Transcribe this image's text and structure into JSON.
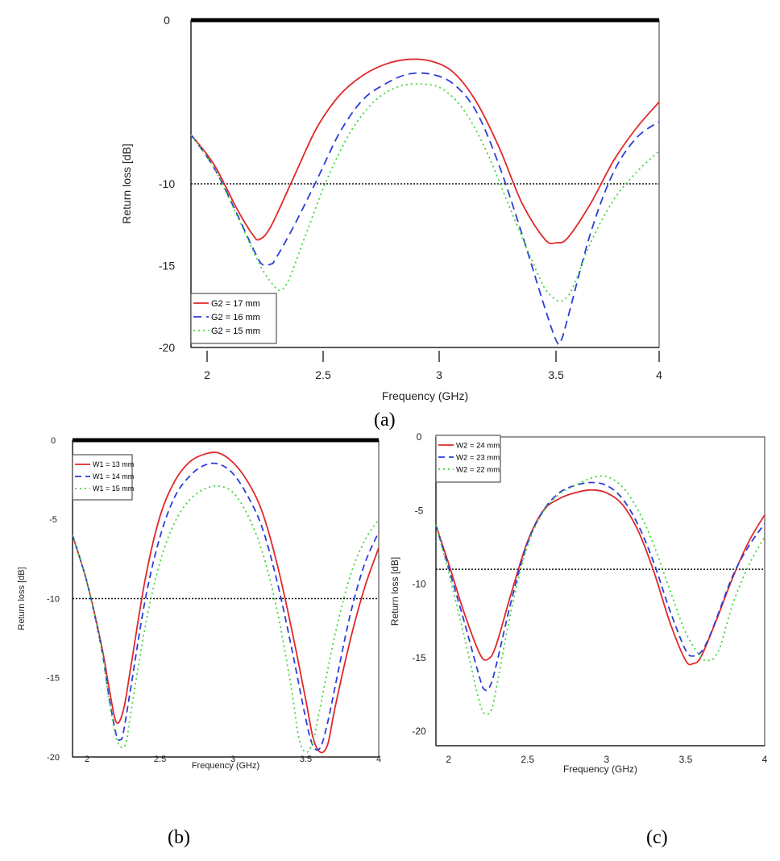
{
  "chart_data": [
    {
      "id": "a",
      "panel_label": "(a)",
      "type": "line",
      "xlabel": "Frequency (GHz)",
      "ylabel": "Return loss [dB]",
      "xlim": [
        1.95,
        4.0
      ],
      "ylim": [
        -20,
        0
      ],
      "xticks": [
        "2",
        "2.5",
        "3",
        "3.5",
        "4"
      ],
      "yticks": [
        "0",
        "-10",
        "-15",
        "-20"
      ],
      "threshold": -10,
      "legend_position": "bottom-left",
      "series": [
        {
          "name": "G2 = 17 mm",
          "color": "#e0282a",
          "dash": "solid",
          "x": [
            1.95,
            2.05,
            2.15,
            2.22,
            2.25,
            2.3,
            2.4,
            2.5,
            2.6,
            2.7,
            2.8,
            2.9,
            3.0,
            3.1,
            3.2,
            3.3,
            3.4,
            3.5,
            3.55,
            3.6,
            3.7,
            3.8,
            3.9,
            4.0
          ],
          "y": [
            -7.0,
            -8.8,
            -11.5,
            -13.1,
            -13.4,
            -12.6,
            -9.6,
            -6.6,
            -4.6,
            -3.4,
            -2.7,
            -2.4,
            -2.5,
            -3.2,
            -5.0,
            -7.8,
            -11.2,
            -13.4,
            -13.6,
            -13.3,
            -11.2,
            -8.6,
            -6.6,
            -5.0
          ]
        },
        {
          "name": "G2 = 16 mm",
          "color": "#2c3fd6",
          "dash": "10,6",
          "x": [
            1.95,
            2.05,
            2.15,
            2.22,
            2.26,
            2.3,
            2.32,
            2.4,
            2.5,
            2.6,
            2.7,
            2.8,
            2.9,
            3.0,
            3.1,
            3.2,
            3.3,
            3.4,
            3.5,
            3.55,
            3.57,
            3.6,
            3.7,
            3.8,
            3.9,
            4.0
          ],
          "y": [
            -7.0,
            -9.0,
            -11.8,
            -13.9,
            -14.9,
            -14.9,
            -14.6,
            -12.6,
            -9.8,
            -6.9,
            -4.9,
            -3.9,
            -3.3,
            -3.3,
            -3.9,
            -5.6,
            -8.9,
            -13.1,
            -17.6,
            -19.6,
            -19.6,
            -18.2,
            -13.0,
            -9.3,
            -7.2,
            -6.2
          ]
        },
        {
          "name": "G2 = 15 mm",
          "color": "#3fd63a",
          "dash": "2,4",
          "x": [
            1.95,
            2.05,
            2.15,
            2.25,
            2.3,
            2.34,
            2.38,
            2.45,
            2.55,
            2.65,
            2.75,
            2.85,
            2.95,
            3.05,
            3.15,
            3.25,
            3.35,
            3.45,
            3.5,
            3.55,
            3.58,
            3.62,
            3.7,
            3.8,
            3.9,
            4.0
          ],
          "y": [
            -7.0,
            -9.0,
            -11.9,
            -14.9,
            -16.0,
            -16.5,
            -15.8,
            -13.2,
            -9.6,
            -6.8,
            -5.0,
            -4.1,
            -3.9,
            -4.2,
            -5.6,
            -8.2,
            -11.6,
            -14.9,
            -16.4,
            -17.1,
            -17.1,
            -16.4,
            -13.6,
            -11.0,
            -9.3,
            -8.0
          ]
        }
      ]
    },
    {
      "id": "b",
      "panel_label": "(b)",
      "type": "line",
      "xlabel": "Frequency (GHz)",
      "ylabel": "Return loss [dB]",
      "xlim": [
        1.9,
        4.0
      ],
      "ylim": [
        -20,
        0
      ],
      "xticks": [
        "2",
        "2.5",
        "3",
        "3.5",
        "4"
      ],
      "yticks": [
        "0",
        "-5",
        "-10",
        "-15",
        "-20"
      ],
      "threshold": -10,
      "legend_position": "top-left",
      "series": [
        {
          "name": "W1 = 13 mm",
          "color": "#e0282a",
          "dash": "solid",
          "x": [
            1.9,
            2.0,
            2.1,
            2.15,
            2.2,
            2.25,
            2.3,
            2.4,
            2.5,
            2.6,
            2.7,
            2.8,
            2.9,
            3.0,
            3.1,
            3.2,
            3.3,
            3.4,
            3.5,
            3.55,
            3.6,
            3.65,
            3.7,
            3.8,
            3.9,
            4.0
          ],
          "y": [
            -6.0,
            -9.0,
            -13.0,
            -15.6,
            -17.8,
            -17.0,
            -14.3,
            -8.7,
            -4.8,
            -2.6,
            -1.4,
            -0.9,
            -0.8,
            -1.4,
            -2.6,
            -4.5,
            -7.7,
            -11.8,
            -16.4,
            -18.8,
            -19.7,
            -19.2,
            -16.9,
            -12.8,
            -9.4,
            -6.8
          ]
        },
        {
          "name": "W1 = 14 mm",
          "color": "#2c3fd6",
          "dash": "8,5",
          "x": [
            1.9,
            2.0,
            2.1,
            2.15,
            2.2,
            2.23,
            2.25,
            2.3,
            2.4,
            2.5,
            2.6,
            2.7,
            2.8,
            2.9,
            3.0,
            3.1,
            3.2,
            3.3,
            3.4,
            3.5,
            3.55,
            3.6,
            3.65,
            3.7,
            3.8,
            3.9,
            4.0
          ],
          "y": [
            -6.0,
            -9.0,
            -13.2,
            -16.2,
            -18.6,
            -18.9,
            -18.4,
            -15.6,
            -10.0,
            -6.1,
            -3.6,
            -2.3,
            -1.6,
            -1.5,
            -2.1,
            -3.5,
            -5.5,
            -8.8,
            -13.0,
            -17.6,
            -19.3,
            -19.4,
            -17.8,
            -15.6,
            -11.2,
            -7.9,
            -5.8
          ]
        },
        {
          "name": "W1 = 15 mm",
          "color": "#3fd63a",
          "dash": "2,4",
          "x": [
            1.9,
            2.0,
            2.1,
            2.15,
            2.2,
            2.24,
            2.27,
            2.3,
            2.4,
            2.5,
            2.6,
            2.7,
            2.8,
            2.9,
            3.0,
            3.1,
            3.2,
            3.3,
            3.4,
            3.45,
            3.5,
            3.55,
            3.6,
            3.7,
            3.8,
            3.9,
            4.0
          ],
          "y": [
            -6.0,
            -9.0,
            -13.2,
            -16.4,
            -18.8,
            -19.4,
            -19.0,
            -17.2,
            -11.7,
            -7.7,
            -5.2,
            -3.8,
            -3.1,
            -2.9,
            -3.3,
            -4.7,
            -7.0,
            -10.6,
            -15.6,
            -18.7,
            -19.7,
            -19.0,
            -16.8,
            -12.3,
            -8.7,
            -6.4,
            -5.0
          ]
        }
      ]
    },
    {
      "id": "c",
      "panel_label": "(c)",
      "type": "line",
      "xlabel": "Frequency (GHz)",
      "ylabel": "Return loss [dB]",
      "xlim": [
        1.92,
        4.0
      ],
      "ylim": [
        -21,
        0
      ],
      "xticks": [
        "2",
        "2.5",
        "3",
        "3.5",
        "4"
      ],
      "yticks": [
        "0",
        "-5",
        "-10",
        "-15",
        "-20"
      ],
      "threshold": -9,
      "legend_position": "top-left",
      "series": [
        {
          "name": "W2 = 24 mm",
          "color": "#e0282a",
          "dash": "solid",
          "x": [
            1.92,
            2.0,
            2.1,
            2.2,
            2.25,
            2.3,
            2.4,
            2.5,
            2.6,
            2.7,
            2.8,
            2.9,
            3.0,
            3.1,
            3.2,
            3.3,
            3.4,
            3.5,
            3.55,
            3.6,
            3.7,
            3.8,
            3.9,
            4.0
          ],
          "y": [
            -6.0,
            -8.6,
            -12.0,
            -14.8,
            -15.1,
            -14.2,
            -10.5,
            -7.1,
            -5.0,
            -4.2,
            -3.8,
            -3.6,
            -3.8,
            -4.6,
            -6.4,
            -9.2,
            -12.6,
            -15.2,
            -15.4,
            -14.9,
            -12.3,
            -9.5,
            -7.1,
            -5.3
          ]
        },
        {
          "name": "W2 = 23 mm",
          "color": "#2c3fd6",
          "dash": "8,5",
          "x": [
            1.92,
            2.0,
            2.1,
            2.2,
            2.23,
            2.26,
            2.3,
            2.4,
            2.5,
            2.6,
            2.7,
            2.8,
            2.9,
            3.0,
            3.1,
            3.2,
            3.3,
            3.4,
            3.5,
            3.55,
            3.6,
            3.65,
            3.7,
            3.8,
            3.9,
            4.0
          ],
          "y": [
            -6.0,
            -8.9,
            -12.6,
            -16.5,
            -17.2,
            -17.0,
            -15.6,
            -11.0,
            -7.2,
            -5.0,
            -3.8,
            -3.3,
            -3.1,
            -3.3,
            -4.2,
            -6.0,
            -8.6,
            -11.8,
            -14.5,
            -14.9,
            -14.6,
            -13.6,
            -12.2,
            -9.4,
            -7.4,
            -5.9
          ]
        },
        {
          "name": "W2 = 22 mm",
          "color": "#3fd63a",
          "dash": "2,4",
          "x": [
            1.92,
            2.0,
            2.1,
            2.2,
            2.24,
            2.27,
            2.3,
            2.4,
            2.5,
            2.6,
            2.7,
            2.8,
            2.9,
            3.0,
            3.1,
            3.2,
            3.3,
            3.4,
            3.5,
            3.6,
            3.65,
            3.68,
            3.72,
            3.8,
            3.9,
            4.0
          ],
          "y": [
            -6.0,
            -9.2,
            -13.6,
            -18.2,
            -18.8,
            -18.6,
            -17.2,
            -11.6,
            -7.4,
            -5.1,
            -3.9,
            -3.3,
            -2.8,
            -2.7,
            -3.4,
            -5.0,
            -7.4,
            -10.4,
            -13.3,
            -15.0,
            -15.2,
            -15.0,
            -14.2,
            -11.3,
            -8.7,
            -6.8
          ]
        }
      ]
    }
  ]
}
